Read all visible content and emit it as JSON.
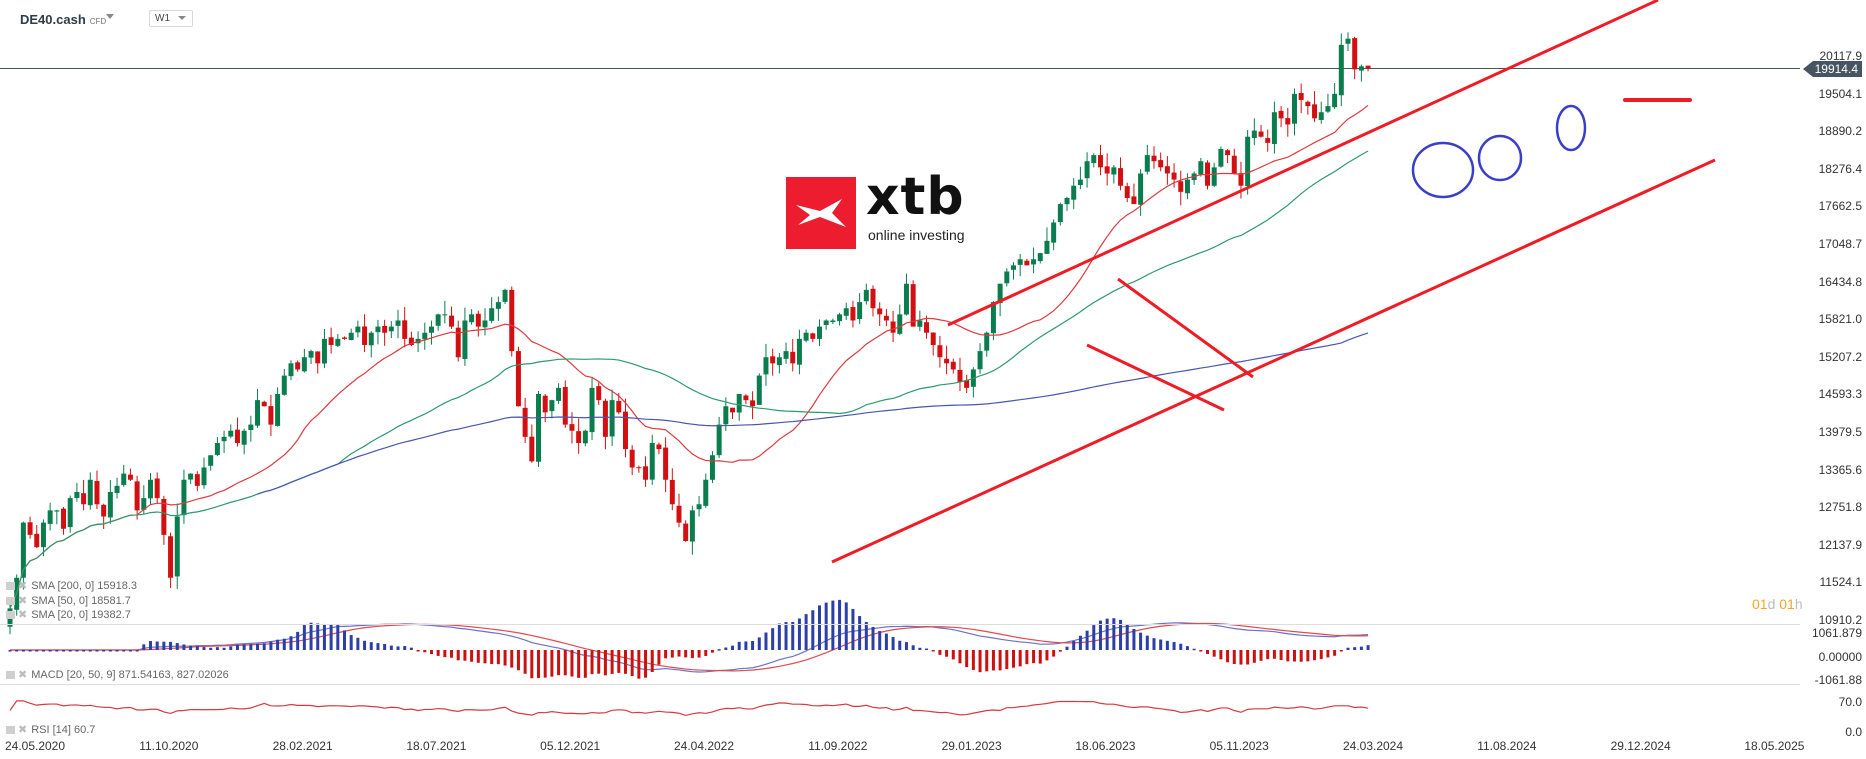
{
  "header": {
    "symbol": "DE40.cash",
    "symbol_type": "CFD",
    "timeframe": "W1"
  },
  "logo": {
    "brand": "xtb",
    "tagline": "online investing"
  },
  "price_tag": "19914.4",
  "countdown": {
    "d_val": "01",
    "d_unit": "d",
    "h_val": "01",
    "h_unit": "h"
  },
  "legends": {
    "sma200": "SMA [200, 0] 15918.3",
    "sma50": "SMA [50, 0] 18581.7",
    "sma20": "SMA [20, 0] 19382.7",
    "macd": "MACD [20, 50, 9] 871.54163, 827.02026",
    "rsi": "RSI [14] 60.7"
  },
  "colors": {
    "bull": "#0a7d4f",
    "bear": "#d40f12",
    "sma20": "#e0393e",
    "sma50": "#2e9a6b",
    "sma200": "#4a55b0",
    "trendline": "#ee1c25",
    "circle": "#3a3fc8",
    "price_line": "#465561"
  },
  "chart_data": {
    "type": "candlestick",
    "title": "DE40.cash CFD W1",
    "xlabel": "",
    "ylabel": "",
    "ylim": [
      10910.2,
      20117.9
    ],
    "grid": false,
    "y_ticks": [
      "20117.9",
      "19504.1",
      "18890.2",
      "18276.4",
      "17662.5",
      "17048.7",
      "16434.8",
      "15821.0",
      "15207.2",
      "14593.3",
      "13979.5",
      "13365.6",
      "12751.8",
      "12137.9",
      "11524.1",
      "10910.2"
    ],
    "x_ticks": [
      "24.05.2020",
      "11.10.2020",
      "28.02.2021",
      "18.07.2021",
      "05.12.2021",
      "24.04.2022",
      "11.09.2022",
      "29.01.2023",
      "18.06.2023",
      "05.11.2023",
      "24.03.2024",
      "11.08.2024",
      "29.12.2024",
      "18.05.2025"
    ],
    "last_price": 19914.4,
    "weekly_closes": [
      11100,
      11600,
      12500,
      12300,
      12100,
      12500,
      12700,
      12700,
      12400,
      12900,
      13000,
      12800,
      13200,
      12800,
      12600,
      13000,
      13100,
      13300,
      13200,
      12700,
      12900,
      13200,
      12900,
      12300,
      11600,
      12600,
      13200,
      13300,
      13100,
      13400,
      13600,
      13800,
      13900,
      14000,
      13800,
      14000,
      14100,
      14500,
      14400,
      14100,
      14600,
      14900,
      15100,
      15000,
      15200,
      15300,
      15100,
      15500,
      15400,
      15500,
      15500,
      15600,
      15700,
      15400,
      15600,
      15700,
      15600,
      15700,
      15800,
      15500,
      15400,
      15500,
      15600,
      15700,
      15900,
      15900,
      15700,
      15200,
      15800,
      15900,
      15700,
      15800,
      16000,
      16100,
      16300,
      15300,
      14400,
      13900,
      13500,
      14600,
      14300,
      14500,
      14700,
      14100,
      14000,
      13800,
      14000,
      14700,
      14500,
      13900,
      14500,
      14300,
      13700,
      13400,
      13400,
      13200,
      13800,
      13700,
      13200,
      12800,
      12500,
      12200,
      12700,
      12800,
      13200,
      13600,
      14100,
      14400,
      14300,
      14600,
      14500,
      14400,
      14900,
      15200,
      15100,
      15200,
      15300,
      15100,
      15500,
      15600,
      15500,
      15700,
      15800,
      15800,
      15900,
      16000,
      15800,
      16100,
      16300,
      16000,
      15900,
      15800,
      15600,
      15900,
      16400,
      15700,
      15800,
      15600,
      15400,
      15200,
      15100,
      15000,
      14800,
      14700,
      15000,
      15300,
      15600,
      16100,
      16400,
      16600,
      16700,
      16800,
      16700,
      16800,
      16900,
      17100,
      17400,
      17700,
      17800,
      18000,
      18100,
      18400,
      18500,
      18300,
      18200,
      18300,
      18000,
      17800,
      17700,
      18200,
      18500,
      18400,
      18300,
      18200,
      18100,
      17900,
      18100,
      18200,
      18400,
      18000,
      18300,
      18600,
      18500,
      18200,
      18000,
      18800,
      18900,
      18800,
      18700,
      19200,
      19100,
      19000,
      19500,
      19400,
      19300,
      19100,
      19200,
      19300,
      19500,
      20300,
      20400,
      19900,
      19950,
      19914
    ],
    "series": [
      {
        "name": "SMA 200",
        "last": 15918.3
      },
      {
        "name": "SMA 50",
        "last": 18581.7
      },
      {
        "name": "SMA 20",
        "last": 19382.7
      }
    ],
    "macd": {
      "params": "20, 50, 9",
      "macd": 871.54163,
      "signal": 827.02026,
      "y_ticks": [
        "1061.879",
        "0.00000",
        "-1061.88"
      ]
    },
    "rsi": {
      "period": 14,
      "value": 60.7,
      "y_ticks": [
        "70.0",
        "0.0"
      ]
    },
    "annotations": [
      "upward channel (red trendlines)",
      "falling wedge/flag (red)",
      "three blue circles marking pullbacks to SMA20",
      "red horizontal support line ~19500"
    ]
  }
}
